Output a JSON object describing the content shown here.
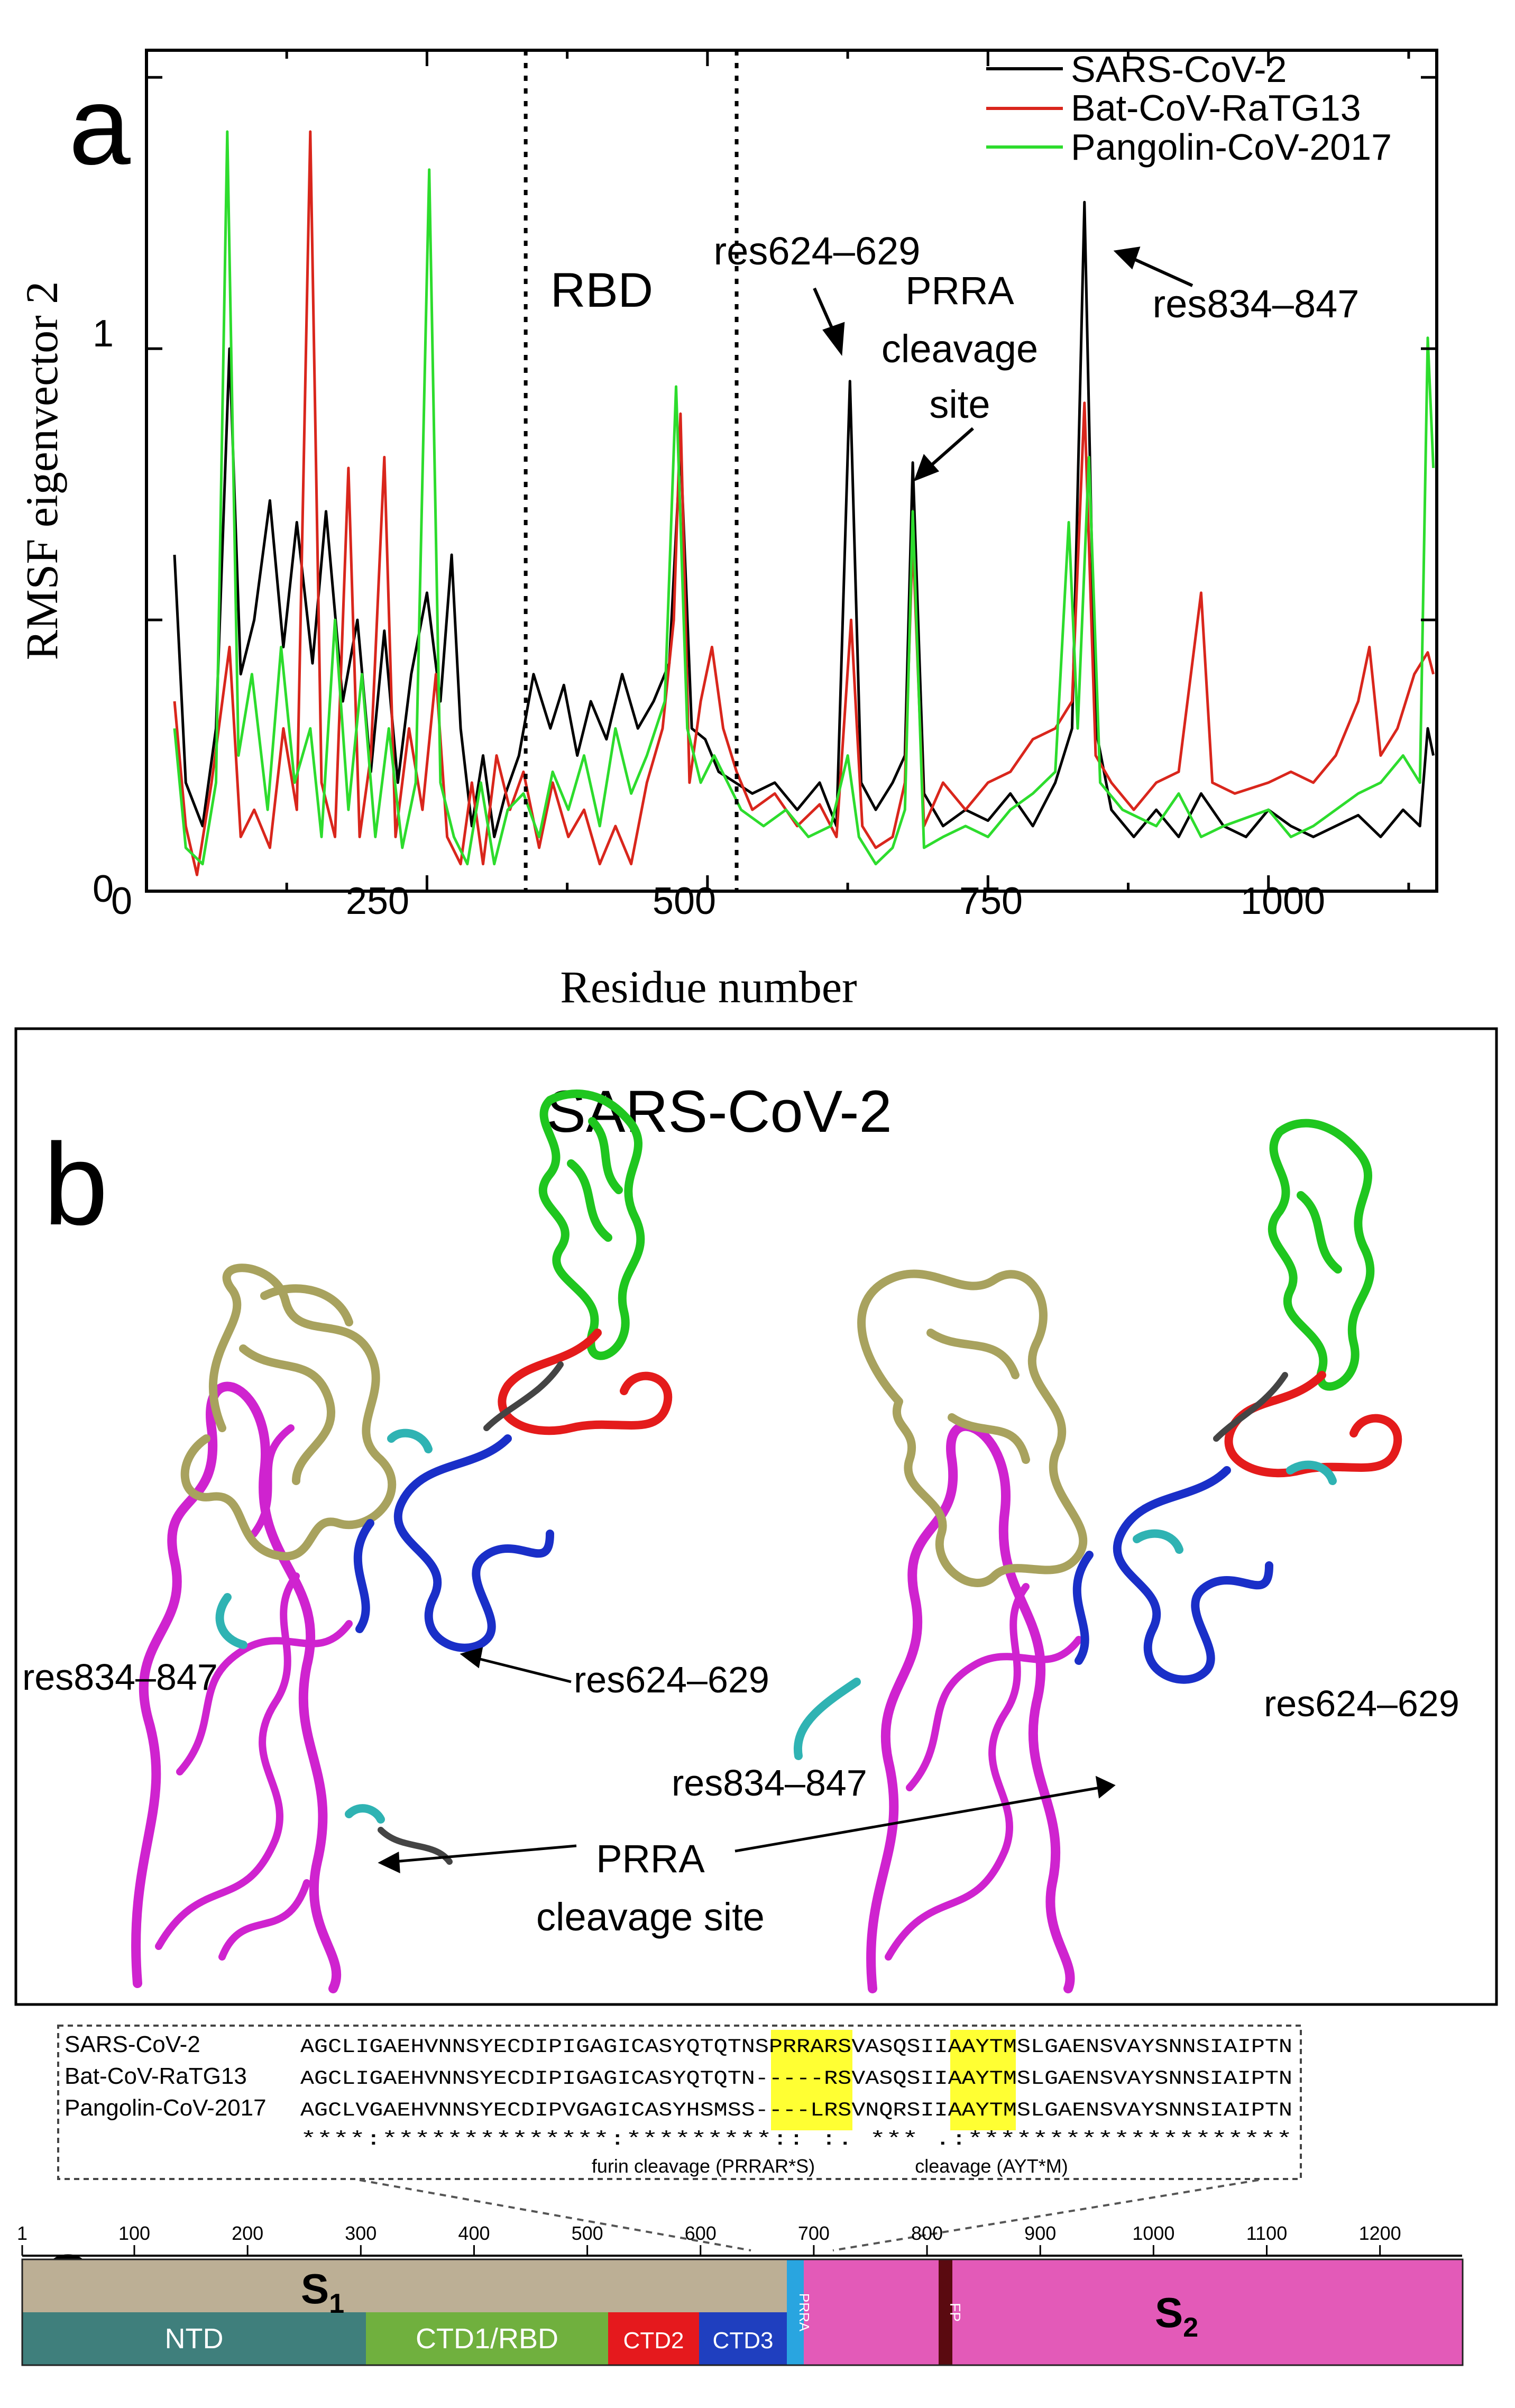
{
  "panel_a": {
    "label": "a",
    "xlabel": "Residue number",
    "ylabel": "RMSF eigenvector 2",
    "region_label": "RBD",
    "annotations": [
      "res624–629",
      "PRRA",
      "cleavage",
      "site",
      "res834–847"
    ],
    "legend": [
      "SARS-CoV-2",
      "Bat-CoV-RaTG13",
      "Pangolin-CoV-2017"
    ],
    "xticks": [
      "0",
      "250",
      "500",
      "750",
      "1000"
    ],
    "yticks": [
      "0",
      "1"
    ]
  },
  "panel_b": {
    "label": "b",
    "title": "SARS-CoV-2",
    "left_labels": [
      "res834–847",
      "res624–629"
    ],
    "right_labels": [
      "res624–629",
      "res834–847"
    ],
    "bottom_label_1": "PRRA",
    "bottom_label_2": "cleavage site",
    "colors": {
      "ntd": "#a8a25e",
      "rbd": "#1fc61f",
      "ctd2": "#e41b1b",
      "ctd3": "#1a2fc8",
      "s2": "#cf23cf",
      "highlight": "#2fb3b3",
      "linker": "#444444"
    }
  },
  "panel_c": {
    "label": "c",
    "alignment": [
      {
        "name": "SARS-CoV-2",
        "pre": "AGCLIGAEHVNNSYECDIPIGAGICASYQTQTN",
        "hl1": "SPRRA",
        "mid": "RSVASQSIIA",
        "hl2": "AYTM",
        "post": "SLGAENSVAYSNNSIAIPTN"
      },
      {
        "name": "Bat-CoV-RaTG13",
        "pre": "AGCLIGAEHVNNSYECDIPIGAGICASYQTQTN",
        "hl1": "-----",
        "mid": "RSVASQSIIA",
        "hl2": "AYTM",
        "post": "SLGAENSVAYSNNSIAIPTN"
      },
      {
        "name": "Pangolin-CoV-2017",
        "pre": "AGCLVGAEHVNNSYECDIPVGAGICASYHSMSS",
        "hl1": "----L",
        "mid": "RSVNQRSIIA",
        "hl2": "AYTM",
        "post": "SLGAENSVAYSNNSIAIPTN"
      }
    ],
    "conservation": "****:**************:*********:: :.   ***  .:********************",
    "furin_label": "furin cleavage (PRRAR*S)",
    "cleavage_label": "cleavage (AYT*M)",
    "ruler_ticks": [
      "1",
      "100",
      "200",
      "300",
      "400",
      "500",
      "600",
      "700",
      "800",
      "900",
      "1000",
      "1100",
      "1200"
    ],
    "s1": "S",
    "s1_sub": "1",
    "s2": "S",
    "s2_sub": "2",
    "domains": [
      "NTD",
      "CTD1/RBD",
      "CTD2",
      "CTD3"
    ],
    "prra_vertical": "PRRA",
    "fp": "FP",
    "colors": {
      "s1": "#bcaf95",
      "s2": "#e35ab8",
      "ntd": "#3f7f7c",
      "rbd": "#70b03e",
      "ctd2": "#e5191d",
      "ctd3": "#1f3fbf",
      "prra": "#29a5e0",
      "fp": "#5a0a10",
      "highlight": "#ffff33"
    }
  },
  "chart_data": {
    "type": "line",
    "title": "",
    "xlabel": "Residue number",
    "ylabel": "RMSF eigenvector 2",
    "xlim": [
      0,
      1150
    ],
    "ylim": [
      0,
      1.55
    ],
    "grid": false,
    "legend_position": "top-right",
    "series": [
      {
        "name": "SARS-CoV-2",
        "color": "#000000",
        "points": [
          [
            25,
            0.62
          ],
          [
            35,
            0.2
          ],
          [
            50,
            0.12
          ],
          [
            62,
            0.3
          ],
          [
            74,
            1.0
          ],
          [
            84,
            0.4
          ],
          [
            96,
            0.5
          ],
          [
            110,
            0.72
          ],
          [
            122,
            0.45
          ],
          [
            134,
            0.68
          ],
          [
            148,
            0.42
          ],
          [
            160,
            0.7
          ],
          [
            175,
            0.35
          ],
          [
            188,
            0.5
          ],
          [
            200,
            0.22
          ],
          [
            212,
            0.48
          ],
          [
            224,
            0.2
          ],
          [
            236,
            0.4
          ],
          [
            250,
            0.55
          ],
          [
            262,
            0.35
          ],
          [
            272,
            0.62
          ],
          [
            280,
            0.3
          ],
          [
            290,
            0.12
          ],
          [
            300,
            0.25
          ],
          [
            310,
            0.1
          ],
          [
            320,
            0.18
          ],
          [
            332,
            0.25
          ],
          [
            345,
            0.4
          ],
          [
            360,
            0.3
          ],
          [
            372,
            0.38
          ],
          [
            384,
            0.25
          ],
          [
            396,
            0.35
          ],
          [
            410,
            0.28
          ],
          [
            424,
            0.4
          ],
          [
            438,
            0.3
          ],
          [
            452,
            0.35
          ],
          [
            466,
            0.42
          ],
          [
            476,
            0.82
          ],
          [
            486,
            0.3
          ],
          [
            498,
            0.28
          ],
          [
            510,
            0.22
          ],
          [
            525,
            0.2
          ],
          [
            540,
            0.18
          ],
          [
            560,
            0.2
          ],
          [
            580,
            0.15
          ],
          [
            600,
            0.2
          ],
          [
            615,
            0.12
          ],
          [
            627,
            0.94
          ],
          [
            637,
            0.2
          ],
          [
            650,
            0.15
          ],
          [
            665,
            0.2
          ],
          [
            676,
            0.25
          ],
          [
            683,
            0.79
          ],
          [
            693,
            0.18
          ],
          [
            710,
            0.12
          ],
          [
            730,
            0.15
          ],
          [
            750,
            0.13
          ],
          [
            770,
            0.18
          ],
          [
            790,
            0.12
          ],
          [
            810,
            0.2
          ],
          [
            825,
            0.3
          ],
          [
            836,
            1.27
          ],
          [
            846,
            0.3
          ],
          [
            860,
            0.15
          ],
          [
            880,
            0.1
          ],
          [
            900,
            0.15
          ],
          [
            920,
            0.1
          ],
          [
            940,
            0.18
          ],
          [
            960,
            0.12
          ],
          [
            980,
            0.1
          ],
          [
            1000,
            0.15
          ],
          [
            1020,
            0.12
          ],
          [
            1040,
            0.1
          ],
          [
            1060,
            0.12
          ],
          [
            1080,
            0.14
          ],
          [
            1100,
            0.1
          ],
          [
            1120,
            0.15
          ],
          [
            1135,
            0.12
          ],
          [
            1142,
            0.3
          ],
          [
            1147,
            0.25
          ]
        ]
      },
      {
        "name": "Bat-CoV-RaTG13",
        "color": "#d9261c",
        "points": [
          [
            25,
            0.35
          ],
          [
            35,
            0.12
          ],
          [
            45,
            0.03
          ],
          [
            58,
            0.2
          ],
          [
            74,
            0.45
          ],
          [
            84,
            0.1
          ],
          [
            96,
            0.15
          ],
          [
            110,
            0.08
          ],
          [
            122,
            0.3
          ],
          [
            134,
            0.15
          ],
          [
            146,
            1.4
          ],
          [
            156,
            0.2
          ],
          [
            168,
            0.1
          ],
          [
            180,
            0.78
          ],
          [
            190,
            0.1
          ],
          [
            200,
            0.25
          ],
          [
            212,
            0.8
          ],
          [
            222,
            0.1
          ],
          [
            234,
            0.3
          ],
          [
            246,
            0.15
          ],
          [
            258,
            0.4
          ],
          [
            268,
            0.1
          ],
          [
            280,
            0.05
          ],
          [
            290,
            0.2
          ],
          [
            300,
            0.05
          ],
          [
            312,
            0.25
          ],
          [
            324,
            0.15
          ],
          [
            336,
            0.22
          ],
          [
            350,
            0.08
          ],
          [
            362,
            0.2
          ],
          [
            376,
            0.1
          ],
          [
            390,
            0.15
          ],
          [
            404,
            0.05
          ],
          [
            418,
            0.12
          ],
          [
            432,
            0.05
          ],
          [
            446,
            0.2
          ],
          [
            460,
            0.3
          ],
          [
            470,
            0.5
          ],
          [
            476,
            0.88
          ],
          [
            484,
            0.2
          ],
          [
            494,
            0.35
          ],
          [
            504,
            0.45
          ],
          [
            514,
            0.3
          ],
          [
            526,
            0.22
          ],
          [
            540,
            0.15
          ],
          [
            560,
            0.18
          ],
          [
            580,
            0.12
          ],
          [
            600,
            0.16
          ],
          [
            615,
            0.1
          ],
          [
            628,
            0.5
          ],
          [
            638,
            0.12
          ],
          [
            650,
            0.08
          ],
          [
            665,
            0.1
          ],
          [
            676,
            0.2
          ],
          [
            683,
            0.65
          ],
          [
            693,
            0.12
          ],
          [
            710,
            0.2
          ],
          [
            730,
            0.15
          ],
          [
            750,
            0.2
          ],
          [
            770,
            0.22
          ],
          [
            790,
            0.28
          ],
          [
            810,
            0.3
          ],
          [
            825,
            0.35
          ],
          [
            836,
            0.9
          ],
          [
            846,
            0.25
          ],
          [
            860,
            0.2
          ],
          [
            880,
            0.15
          ],
          [
            900,
            0.2
          ],
          [
            920,
            0.22
          ],
          [
            940,
            0.55
          ],
          [
            950,
            0.2
          ],
          [
            970,
            0.18
          ],
          [
            1000,
            0.2
          ],
          [
            1020,
            0.22
          ],
          [
            1040,
            0.2
          ],
          [
            1060,
            0.25
          ],
          [
            1080,
            0.35
          ],
          [
            1090,
            0.45
          ],
          [
            1100,
            0.25
          ],
          [
            1115,
            0.3
          ],
          [
            1130,
            0.4
          ],
          [
            1142,
            0.44
          ],
          [
            1147,
            0.4
          ]
        ]
      },
      {
        "name": "Pangolin-CoV-2017",
        "color": "#2ddc2d",
        "points": [
          [
            25,
            0.3
          ],
          [
            35,
            0.08
          ],
          [
            50,
            0.05
          ],
          [
            62,
            0.2
          ],
          [
            72,
            1.4
          ],
          [
            82,
            0.25
          ],
          [
            94,
            0.4
          ],
          [
            108,
            0.15
          ],
          [
            120,
            0.45
          ],
          [
            132,
            0.2
          ],
          [
            146,
            0.3
          ],
          [
            156,
            0.1
          ],
          [
            168,
            0.5
          ],
          [
            180,
            0.15
          ],
          [
            192,
            0.4
          ],
          [
            204,
            0.1
          ],
          [
            216,
            0.3
          ],
          [
            228,
            0.08
          ],
          [
            240,
            0.2
          ],
          [
            252,
            1.33
          ],
          [
            262,
            0.2
          ],
          [
            274,
            0.1
          ],
          [
            286,
            0.05
          ],
          [
            298,
            0.2
          ],
          [
            310,
            0.05
          ],
          [
            322,
            0.15
          ],
          [
            336,
            0.18
          ],
          [
            350,
            0.1
          ],
          [
            362,
            0.22
          ],
          [
            376,
            0.15
          ],
          [
            390,
            0.25
          ],
          [
            404,
            0.12
          ],
          [
            418,
            0.3
          ],
          [
            432,
            0.18
          ],
          [
            446,
            0.25
          ],
          [
            462,
            0.35
          ],
          [
            472,
            0.93
          ],
          [
            482,
            0.3
          ],
          [
            494,
            0.2
          ],
          [
            506,
            0.25
          ],
          [
            518,
            0.2
          ],
          [
            530,
            0.15
          ],
          [
            550,
            0.12
          ],
          [
            570,
            0.15
          ],
          [
            590,
            0.1
          ],
          [
            610,
            0.12
          ],
          [
            625,
            0.25
          ],
          [
            635,
            0.1
          ],
          [
            650,
            0.05
          ],
          [
            665,
            0.08
          ],
          [
            676,
            0.15
          ],
          [
            683,
            0.7
          ],
          [
            693,
            0.08
          ],
          [
            710,
            0.1
          ],
          [
            730,
            0.12
          ],
          [
            750,
            0.1
          ],
          [
            770,
            0.15
          ],
          [
            790,
            0.18
          ],
          [
            810,
            0.22
          ],
          [
            822,
            0.68
          ],
          [
            830,
            0.3
          ],
          [
            840,
            0.8
          ],
          [
            850,
            0.2
          ],
          [
            870,
            0.15
          ],
          [
            900,
            0.12
          ],
          [
            920,
            0.18
          ],
          [
            940,
            0.1
          ],
          [
            960,
            0.12
          ],
          [
            1000,
            0.15
          ],
          [
            1020,
            0.1
          ],
          [
            1040,
            0.12
          ],
          [
            1060,
            0.15
          ],
          [
            1080,
            0.18
          ],
          [
            1100,
            0.2
          ],
          [
            1120,
            0.25
          ],
          [
            1135,
            0.2
          ],
          [
            1142,
            1.02
          ],
          [
            1147,
            0.78
          ]
        ]
      }
    ],
    "vertical_markers": [
      338,
      526
    ]
  }
}
